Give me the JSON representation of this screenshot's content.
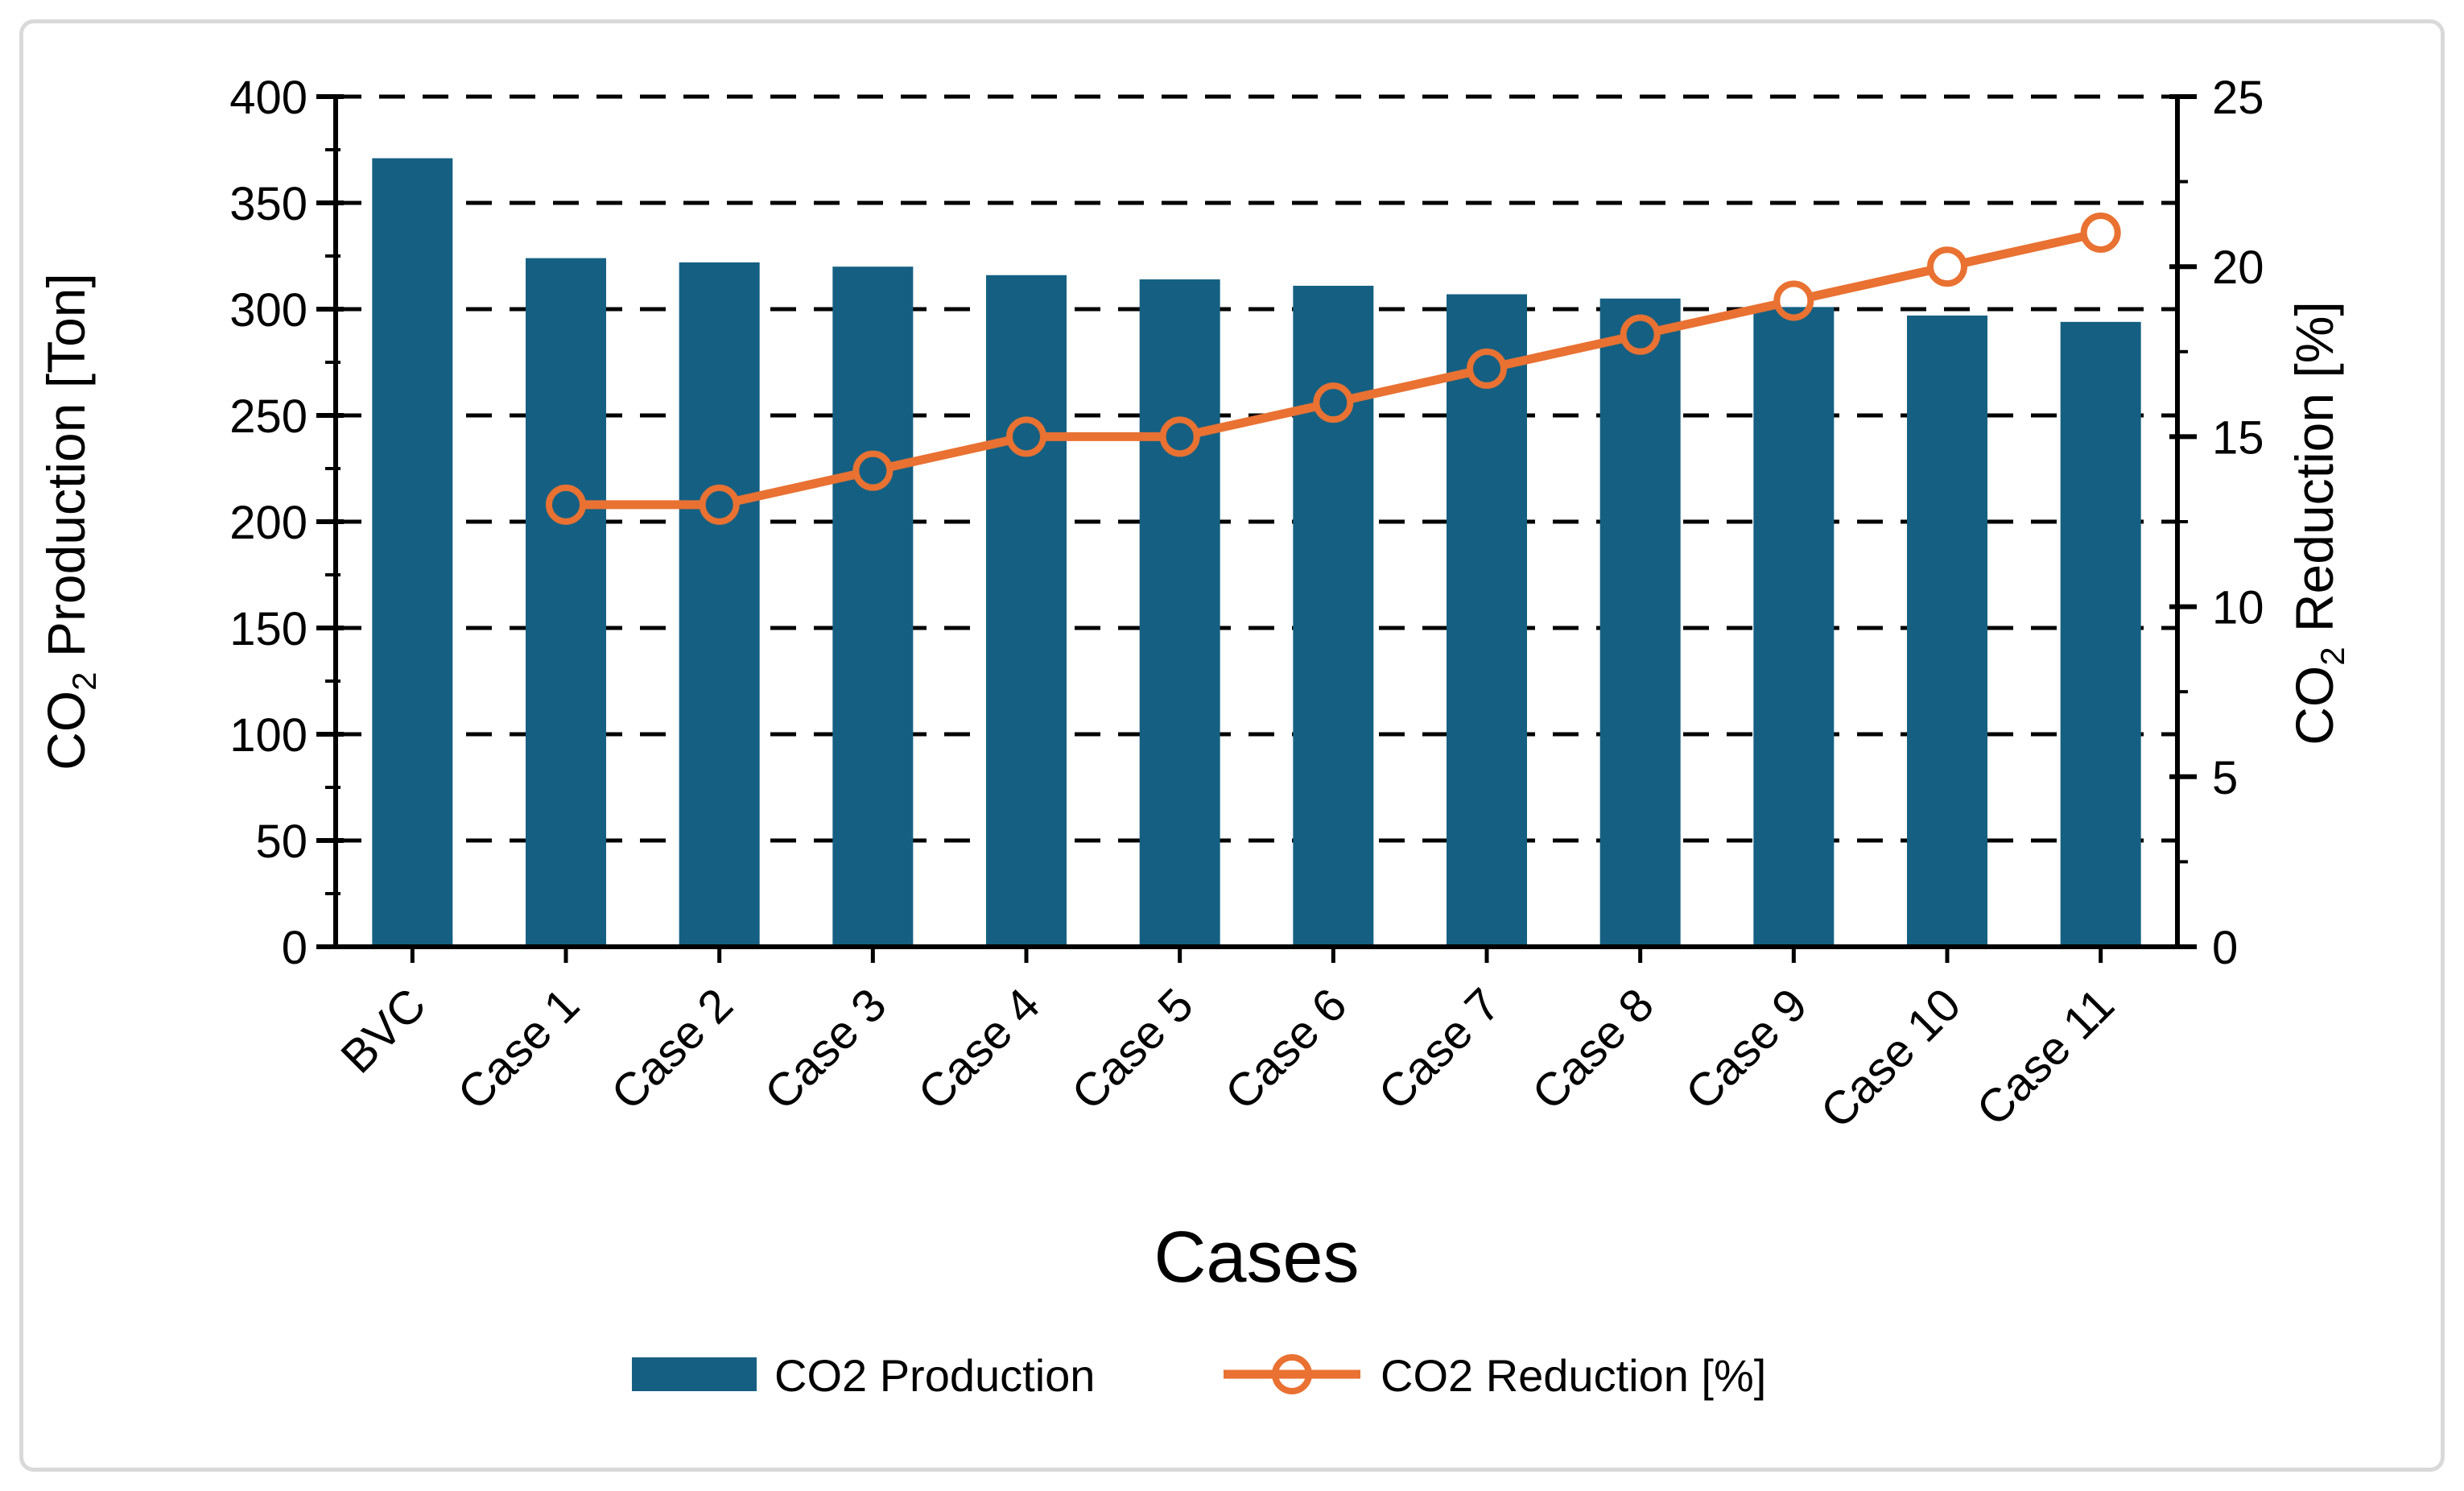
{
  "figure": {
    "background": "#FFFFFF",
    "border_color": "#D9D9D9",
    "text_color": "#000000"
  },
  "chart_data": {
    "type": "bar",
    "subtype": "dual-axis-bar-line",
    "categories": [
      "BVC",
      "Case 1",
      "Case 2",
      "Case 3",
      "Case 4",
      "Case 5",
      "Case 6",
      "Case 7",
      "Case 8",
      "Case 9",
      "Case 10",
      "Case 11"
    ],
    "series": [
      {
        "name": "CO2 Production",
        "type": "bar",
        "axis": "left",
        "color": "#156082",
        "values": [
          371,
          324,
          322,
          320,
          316,
          314,
          311,
          307,
          305,
          301,
          297,
          294
        ]
      },
      {
        "name": "CO2 Reduction [%]",
        "type": "line",
        "axis": "right",
        "color": "#E97132",
        "marker": "open-circle",
        "values": [
          null,
          13,
          13,
          14,
          15,
          15,
          16,
          17,
          18,
          19,
          20,
          21
        ]
      }
    ],
    "xlabel": "Cases",
    "ylabel_left": "CO₂ Production [Ton]",
    "ylabel_right": "CO₂ Reduction [%]",
    "left_axis": {
      "min": 0,
      "max": 400,
      "major_step": 50,
      "minor_step": 25,
      "tick_labels": [
        "0",
        "50",
        "100",
        "150",
        "200",
        "250",
        "300",
        "350",
        "400"
      ]
    },
    "right_axis": {
      "min": 0,
      "max": 25,
      "major_step": 5,
      "minor_step": 2.5,
      "tick_labels": [
        "0",
        "5",
        "10",
        "15",
        "20",
        "25"
      ]
    },
    "grid": {
      "horizontal": "dashed",
      "color": "#000000"
    },
    "legend_position": "bottom"
  }
}
